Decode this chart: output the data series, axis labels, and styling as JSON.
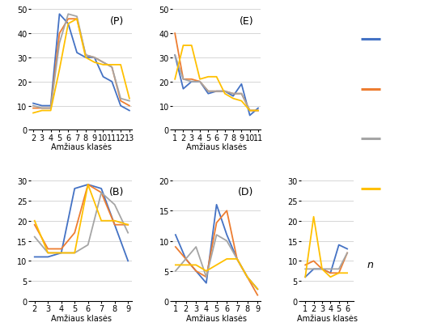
{
  "colors": [
    "#4472c4",
    "#ed7d31",
    "#a5a5a5",
    "#ffc000"
  ],
  "P": {
    "x": [
      2,
      3,
      4,
      5,
      6,
      7,
      8,
      9,
      10,
      11,
      12,
      13
    ],
    "blue": [
      11,
      10,
      10,
      48,
      44,
      32,
      30,
      30,
      22,
      20,
      10,
      8
    ],
    "orange": [
      9,
      9,
      9,
      40,
      46,
      46,
      31,
      30,
      28,
      26,
      12,
      10
    ],
    "gray": [
      10,
      9,
      9,
      36,
      48,
      47,
      31,
      30,
      28,
      26,
      13,
      12
    ],
    "yellow": [
      7,
      8,
      8,
      25,
      44,
      46,
      30,
      28,
      27,
      27,
      27,
      13
    ],
    "ylim": [
      0,
      50
    ],
    "yticks": [
      0,
      10,
      20,
      30,
      40,
      50
    ],
    "label": "(P)"
  },
  "E": {
    "x": [
      1,
      2,
      3,
      4,
      5,
      6,
      7,
      8,
      9,
      10,
      11
    ],
    "blue": [
      31,
      17,
      20,
      20,
      15,
      16,
      16,
      14,
      19,
      6,
      9
    ],
    "orange": [
      40,
      21,
      21,
      20,
      16,
      16,
      16,
      15,
      15,
      8,
      8
    ],
    "gray": [
      31,
      21,
      20,
      20,
      16,
      16,
      16,
      15,
      15,
      8,
      8
    ],
    "yellow": [
      21,
      35,
      35,
      21,
      22,
      22,
      15,
      13,
      12,
      8,
      8
    ],
    "ylim": [
      0,
      50
    ],
    "yticks": [
      0,
      10,
      20,
      30,
      40,
      50
    ],
    "label": "(E)"
  },
  "B": {
    "x": [
      2,
      3,
      4,
      5,
      6,
      7,
      8,
      9
    ],
    "blue": [
      11,
      11,
      12,
      28,
      29,
      28,
      19,
      10
    ],
    "orange": [
      19,
      13,
      13,
      17,
      29,
      27,
      19,
      19
    ],
    "gray": [
      16,
      12,
      12,
      12,
      14,
      27,
      24,
      17
    ],
    "yellow": [
      20,
      12,
      12,
      12,
      29,
      20,
      20,
      19
    ],
    "ylim": [
      0,
      30
    ],
    "yticks": [
      0,
      5,
      10,
      15,
      20,
      25,
      30
    ],
    "label": "(B)"
  },
  "D": {
    "x": [
      1,
      2,
      3,
      4,
      5,
      6,
      7,
      8,
      9
    ],
    "blue": [
      11,
      7,
      5,
      3,
      16,
      11,
      7,
      4,
      2
    ],
    "orange": [
      9,
      7,
      5,
      4,
      13,
      15,
      7,
      4,
      1
    ],
    "gray": [
      5,
      7,
      9,
      4,
      11,
      10,
      7,
      4,
      2
    ],
    "yellow": [
      6,
      6,
      6,
      5,
      6,
      7,
      7,
      4,
      2
    ],
    "ylim": [
      0,
      20
    ],
    "yticks": [
      0,
      5,
      10,
      15,
      20
    ],
    "label": "(D)"
  },
  "R": {
    "x": [
      1,
      2,
      3,
      4,
      5,
      6
    ],
    "blue": [
      6,
      8,
      8,
      7,
      14,
      13
    ],
    "orange": [
      9,
      10,
      8,
      7,
      7,
      12
    ],
    "gray": [
      8,
      8,
      8,
      8,
      8,
      12
    ],
    "yellow": [
      6,
      21,
      8,
      6,
      7,
      7
    ],
    "ylim": [
      0,
      30
    ],
    "yticks": [
      0,
      5,
      10,
      15,
      20,
      25,
      30
    ],
    "label": ""
  },
  "xlabel": "Amžiaus klasės",
  "background_color": "#ffffff",
  "panel_label_fontsize": 9,
  "tick_fontsize": 7,
  "label_fontsize": 7,
  "n_label": "n"
}
